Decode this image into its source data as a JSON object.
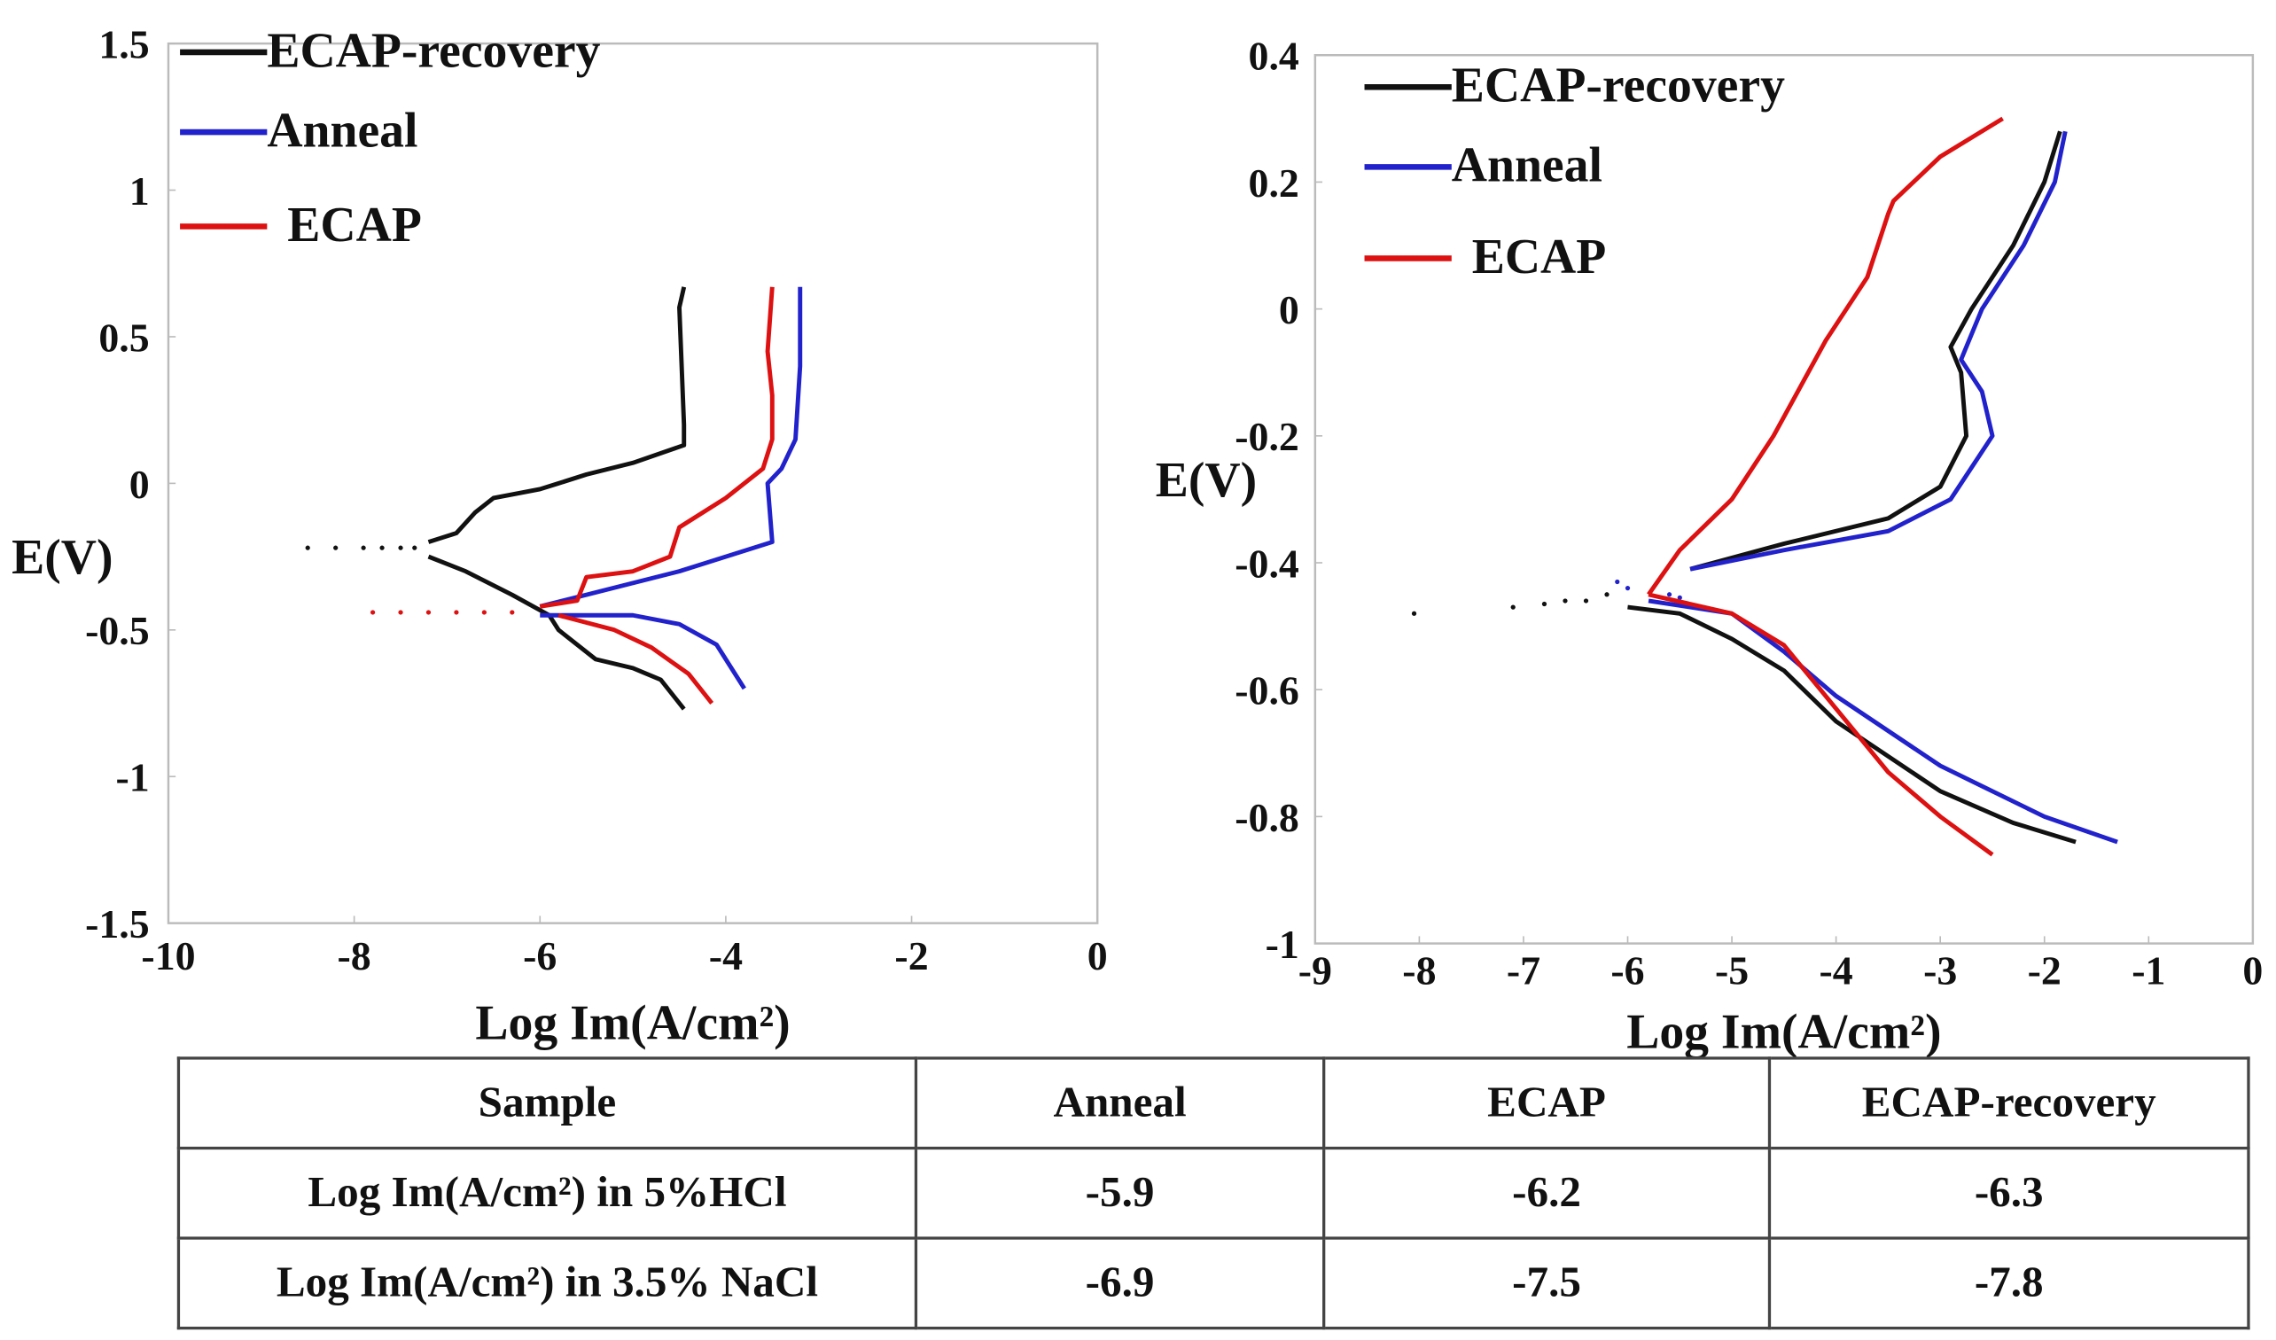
{
  "chart_data": [
    {
      "type": "line",
      "title": "",
      "xlabel": "Log Im(A/cm²)",
      "ylabel": "E(V)",
      "xlim": [
        -10,
        0
      ],
      "ylim": [
        -1.5,
        1.5
      ],
      "xticks": [
        "-10",
        "-8",
        "-6",
        "-4",
        "-2",
        "0"
      ],
      "xtick_values": [
        -10,
        -8,
        -6,
        -4,
        -2,
        0
      ],
      "yticks": [
        "1.5",
        "1",
        "0.5",
        "0",
        "-0.5",
        "-1",
        "-1.5"
      ],
      "ytick_values": [
        1.5,
        1,
        0.5,
        0,
        -0.5,
        -1,
        -1.5
      ],
      "legend_position": "top-left",
      "series": [
        {
          "name": "ECAP-recovery",
          "color": "#111111",
          "anodic": [
            [
              -7.2,
              -0.2
            ],
            [
              -6.9,
              -0.17
            ],
            [
              -6.7,
              -0.1
            ],
            [
              -6.5,
              -0.05
            ],
            [
              -6,
              -0.02
            ],
            [
              -5.8,
              0
            ],
            [
              -5.5,
              0.03
            ],
            [
              -5,
              0.07
            ],
            [
              -4.45,
              0.13
            ],
            [
              -4.45,
              0.2
            ],
            [
              -4.5,
              0.6
            ],
            [
              -4.45,
              0.67
            ]
          ],
          "cathodic": [
            [
              -7.2,
              -0.25
            ],
            [
              -6.8,
              -0.3
            ],
            [
              -6.3,
              -0.38
            ],
            [
              -5.9,
              -0.45
            ],
            [
              -5.8,
              -0.5
            ],
            [
              -5.4,
              -0.6
            ],
            [
              -5,
              -0.63
            ],
            [
              -4.7,
              -0.67
            ],
            [
              -4.45,
              -0.77
            ]
          ],
          "dots": [
            [
              -8.5,
              -0.22
            ],
            [
              -8.2,
              -0.22
            ],
            [
              -7.9,
              -0.22
            ],
            [
              -7.7,
              -0.22
            ],
            [
              -7.5,
              -0.22
            ],
            [
              -7.35,
              -0.22
            ]
          ]
        },
        {
          "name": "Anneal",
          "color": "#2222cc",
          "anodic": [
            [
              -6,
              -0.42
            ],
            [
              -5.5,
              -0.38
            ],
            [
              -4.5,
              -0.3
            ],
            [
              -3.5,
              -0.2
            ],
            [
              -3.55,
              0
            ],
            [
              -3.4,
              0.05
            ],
            [
              -3.25,
              0.15
            ],
            [
              -3.2,
              0.4
            ],
            [
              -3.2,
              0.67
            ]
          ],
          "cathodic": [
            [
              -6,
              -0.45
            ],
            [
              -5,
              -0.45
            ],
            [
              -4.5,
              -0.48
            ],
            [
              -4.1,
              -0.55
            ],
            [
              -3.8,
              -0.7
            ]
          ],
          "dots": []
        },
        {
          "name": "ECAP",
          "color": "#dd1111",
          "anodic": [
            [
              -6,
              -0.42
            ],
            [
              -5.6,
              -0.4
            ],
            [
              -5.5,
              -0.32
            ],
            [
              -5,
              -0.3
            ],
            [
              -4.6,
              -0.25
            ],
            [
              -4.5,
              -0.15
            ],
            [
              -4,
              -0.05
            ],
            [
              -3.6,
              0.05
            ],
            [
              -3.5,
              0.15
            ],
            [
              -3.5,
              0.3
            ],
            [
              -3.55,
              0.45
            ],
            [
              -3.5,
              0.67
            ]
          ],
          "cathodic": [
            [
              -5.8,
              -0.45
            ],
            [
              -5.2,
              -0.5
            ],
            [
              -4.8,
              -0.56
            ],
            [
              -4.4,
              -0.65
            ],
            [
              -4.15,
              -0.75
            ]
          ],
          "dots": [
            [
              -7.8,
              -0.44
            ],
            [
              -7.5,
              -0.44
            ],
            [
              -7.2,
              -0.44
            ],
            [
              -6.9,
              -0.44
            ],
            [
              -6.6,
              -0.44
            ],
            [
              -6.3,
              -0.44
            ]
          ]
        }
      ]
    },
    {
      "type": "line",
      "title": "",
      "xlabel": "Log Im(A/cm²)",
      "ylabel": "E(V)",
      "xlim": [
        -9,
        0
      ],
      "ylim": [
        -1,
        0.4
      ],
      "xticks": [
        "-9",
        "-8",
        "-7",
        "-6",
        "-5",
        "-4",
        "-3",
        "-2",
        "-1",
        "0"
      ],
      "xtick_values": [
        -9,
        -8,
        -7,
        -6,
        -5,
        -4,
        -3,
        -2,
        -1,
        0
      ],
      "yticks": [
        "0.4",
        "0.2",
        "0",
        "-0.2",
        "-0.4",
        "-0.6",
        "-0.8",
        "-1"
      ],
      "ytick_values": [
        0.4,
        0.2,
        0,
        -0.2,
        -0.4,
        -0.6,
        -0.8,
        -1
      ],
      "legend_position": "top-left",
      "series": [
        {
          "name": "ECAP-recovery",
          "color": "#111111",
          "anodic": [
            [
              -5.4,
              -0.41
            ],
            [
              -4.5,
              -0.37
            ],
            [
              -3.5,
              -0.33
            ],
            [
              -3,
              -0.28
            ],
            [
              -2.75,
              -0.2
            ],
            [
              -2.8,
              -0.1
            ],
            [
              -2.9,
              -0.06
            ],
            [
              -2.7,
              0
            ],
            [
              -2.3,
              0.1
            ],
            [
              -2,
              0.2
            ],
            [
              -1.85,
              0.28
            ]
          ],
          "cathodic": [
            [
              -6,
              -0.47
            ],
            [
              -5.5,
              -0.48
            ],
            [
              -5,
              -0.52
            ],
            [
              -4.5,
              -0.57
            ],
            [
              -4,
              -0.65
            ],
            [
              -3,
              -0.76
            ],
            [
              -2.3,
              -0.81
            ],
            [
              -1.7,
              -0.84
            ]
          ],
          "dots": [
            [
              -8.05,
              -0.48
            ],
            [
              -7.1,
              -0.47
            ],
            [
              -6.8,
              -0.465
            ],
            [
              -6.6,
              -0.46
            ],
            [
              -6.4,
              -0.46
            ],
            [
              -6.2,
              -0.45
            ]
          ]
        },
        {
          "name": "Anneal",
          "color": "#2222cc",
          "anodic": [
            [
              -5.4,
              -0.41
            ],
            [
              -4.5,
              -0.38
            ],
            [
              -3.5,
              -0.35
            ],
            [
              -2.9,
              -0.3
            ],
            [
              -2.5,
              -0.2
            ],
            [
              -2.6,
              -0.13
            ],
            [
              -2.8,
              -0.08
            ],
            [
              -2.6,
              0
            ],
            [
              -2.2,
              0.1
            ],
            [
              -1.9,
              0.2
            ],
            [
              -1.8,
              0.28
            ]
          ],
          "cathodic": [
            [
              -5.8,
              -0.46
            ],
            [
              -5,
              -0.48
            ],
            [
              -4.5,
              -0.54
            ],
            [
              -4,
              -0.61
            ],
            [
              -3,
              -0.72
            ],
            [
              -2,
              -0.8
            ],
            [
              -1.3,
              -0.84
            ]
          ],
          "dots": [
            [
              -6.1,
              -0.43
            ],
            [
              -6.0,
              -0.44
            ],
            [
              -5.6,
              -0.45
            ],
            [
              -5.5,
              -0.455
            ]
          ]
        },
        {
          "name": "ECAP",
          "color": "#dd1111",
          "anodic": [
            [
              -5.8,
              -0.45
            ],
            [
              -5.5,
              -0.38
            ],
            [
              -5,
              -0.3
            ],
            [
              -4.6,
              -0.2
            ],
            [
              -4.1,
              -0.05
            ],
            [
              -3.7,
              0.05
            ],
            [
              -3.5,
              0.15
            ],
            [
              -3.45,
              0.17
            ],
            [
              -3,
              0.24
            ],
            [
              -2.4,
              0.3
            ]
          ],
          "cathodic": [
            [
              -5.8,
              -0.45
            ],
            [
              -5,
              -0.48
            ],
            [
              -4.5,
              -0.53
            ],
            [
              -4,
              -0.63
            ],
            [
              -3.5,
              -0.73
            ],
            [
              -3,
              -0.8
            ],
            [
              -2.5,
              -0.86
            ]
          ],
          "dots": []
        }
      ]
    }
  ],
  "table": {
    "header": [
      "Sample",
      "Anneal",
      "ECAP",
      "ECAP-recovery"
    ],
    "rows": [
      {
        "label": "Log Im(A/cm²) in 5%HCl",
        "values": [
          "-5.9",
          "-6.2",
          "-6.3"
        ]
      },
      {
        "label": "Log Im(A/cm²) in 3.5% NaCl",
        "values": [
          "-6.9",
          "-7.5",
          "-7.8"
        ]
      }
    ]
  }
}
